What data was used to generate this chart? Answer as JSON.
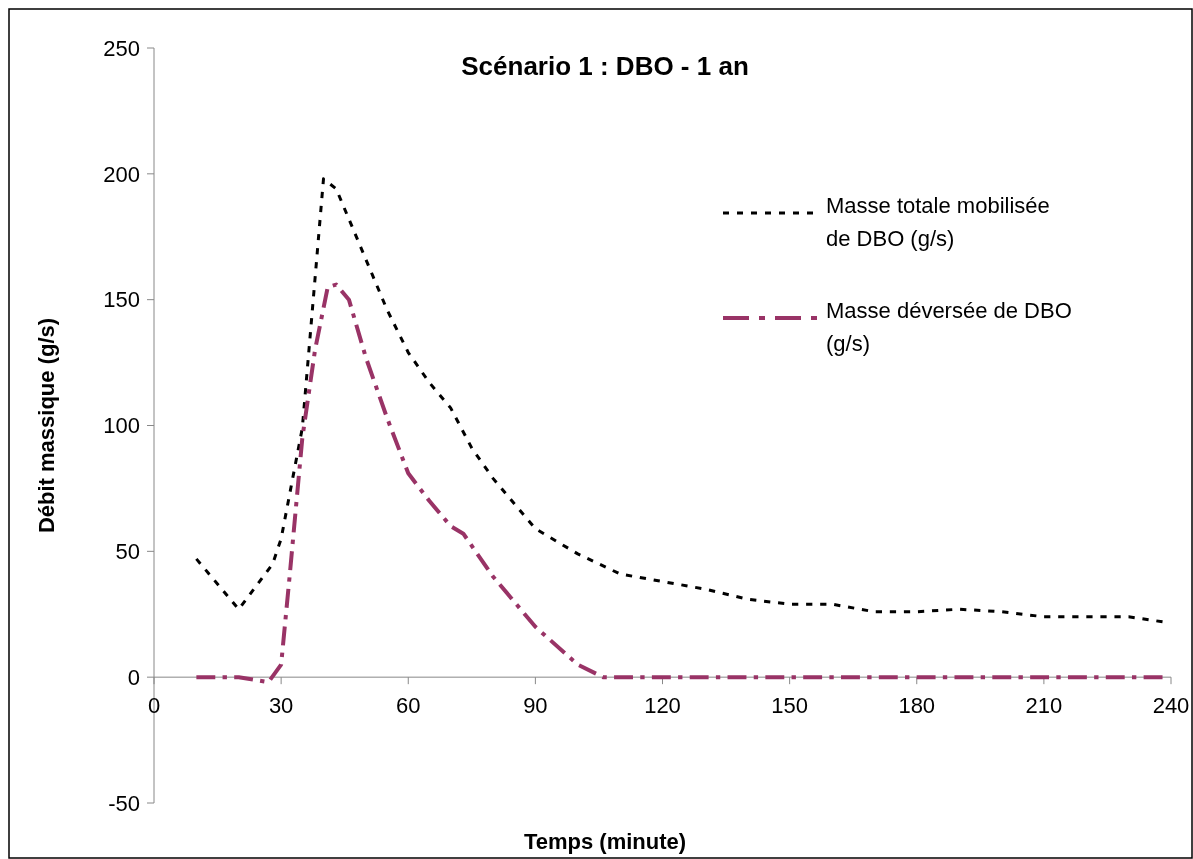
{
  "chart_data": {
    "type": "line",
    "title": "Scénario 1 : DBO - 1 an",
    "xlabel": "Temps (minute)",
    "ylabel": "Débit massique (g/s)",
    "xlim": [
      0,
      240
    ],
    "xticks": [
      0,
      30,
      60,
      90,
      120,
      150,
      180,
      210,
      240
    ],
    "ylim": [
      -50,
      250
    ],
    "yticks": [
      -50,
      0,
      50,
      100,
      150,
      200,
      250
    ],
    "grid": false,
    "legend": "top right",
    "marker": "none",
    "series": [
      {
        "name": "Masse totale mobilisée de DBO (g/s)",
        "color": "#000000",
        "line_style": "dotted",
        "x": [
          10,
          20,
          28,
          30,
          35,
          40,
          43,
          46,
          50,
          55,
          60,
          65,
          70,
          75,
          80,
          90,
          100,
          110,
          120,
          130,
          140,
          150,
          160,
          170,
          180,
          190,
          200,
          210,
          220,
          230,
          238
        ],
        "values": [
          47,
          27,
          45,
          55,
          99,
          198,
          194,
          182,
          166,
          146,
          129,
          117,
          107,
          91,
          79,
          59,
          49,
          41,
          38,
          35,
          31,
          29,
          29,
          26,
          26,
          27,
          26,
          24,
          24,
          24,
          22
        ]
      },
      {
        "name": "Masse déversée de DBO (g/s)",
        "color": "#993366",
        "line_style": "dashed",
        "x": [
          10,
          20,
          27,
          30,
          32,
          35,
          38,
          41,
          43,
          46,
          50,
          55,
          60,
          65,
          70,
          73,
          80,
          90,
          100,
          106,
          120,
          150,
          180,
          210,
          238
        ],
        "values": [
          0,
          0,
          -2,
          5,
          40,
          95,
          130,
          155,
          156,
          150,
          127,
          103,
          81,
          70,
          60,
          57,
          40,
          20,
          5,
          0,
          0,
          0,
          0,
          0,
          0
        ]
      }
    ]
  }
}
